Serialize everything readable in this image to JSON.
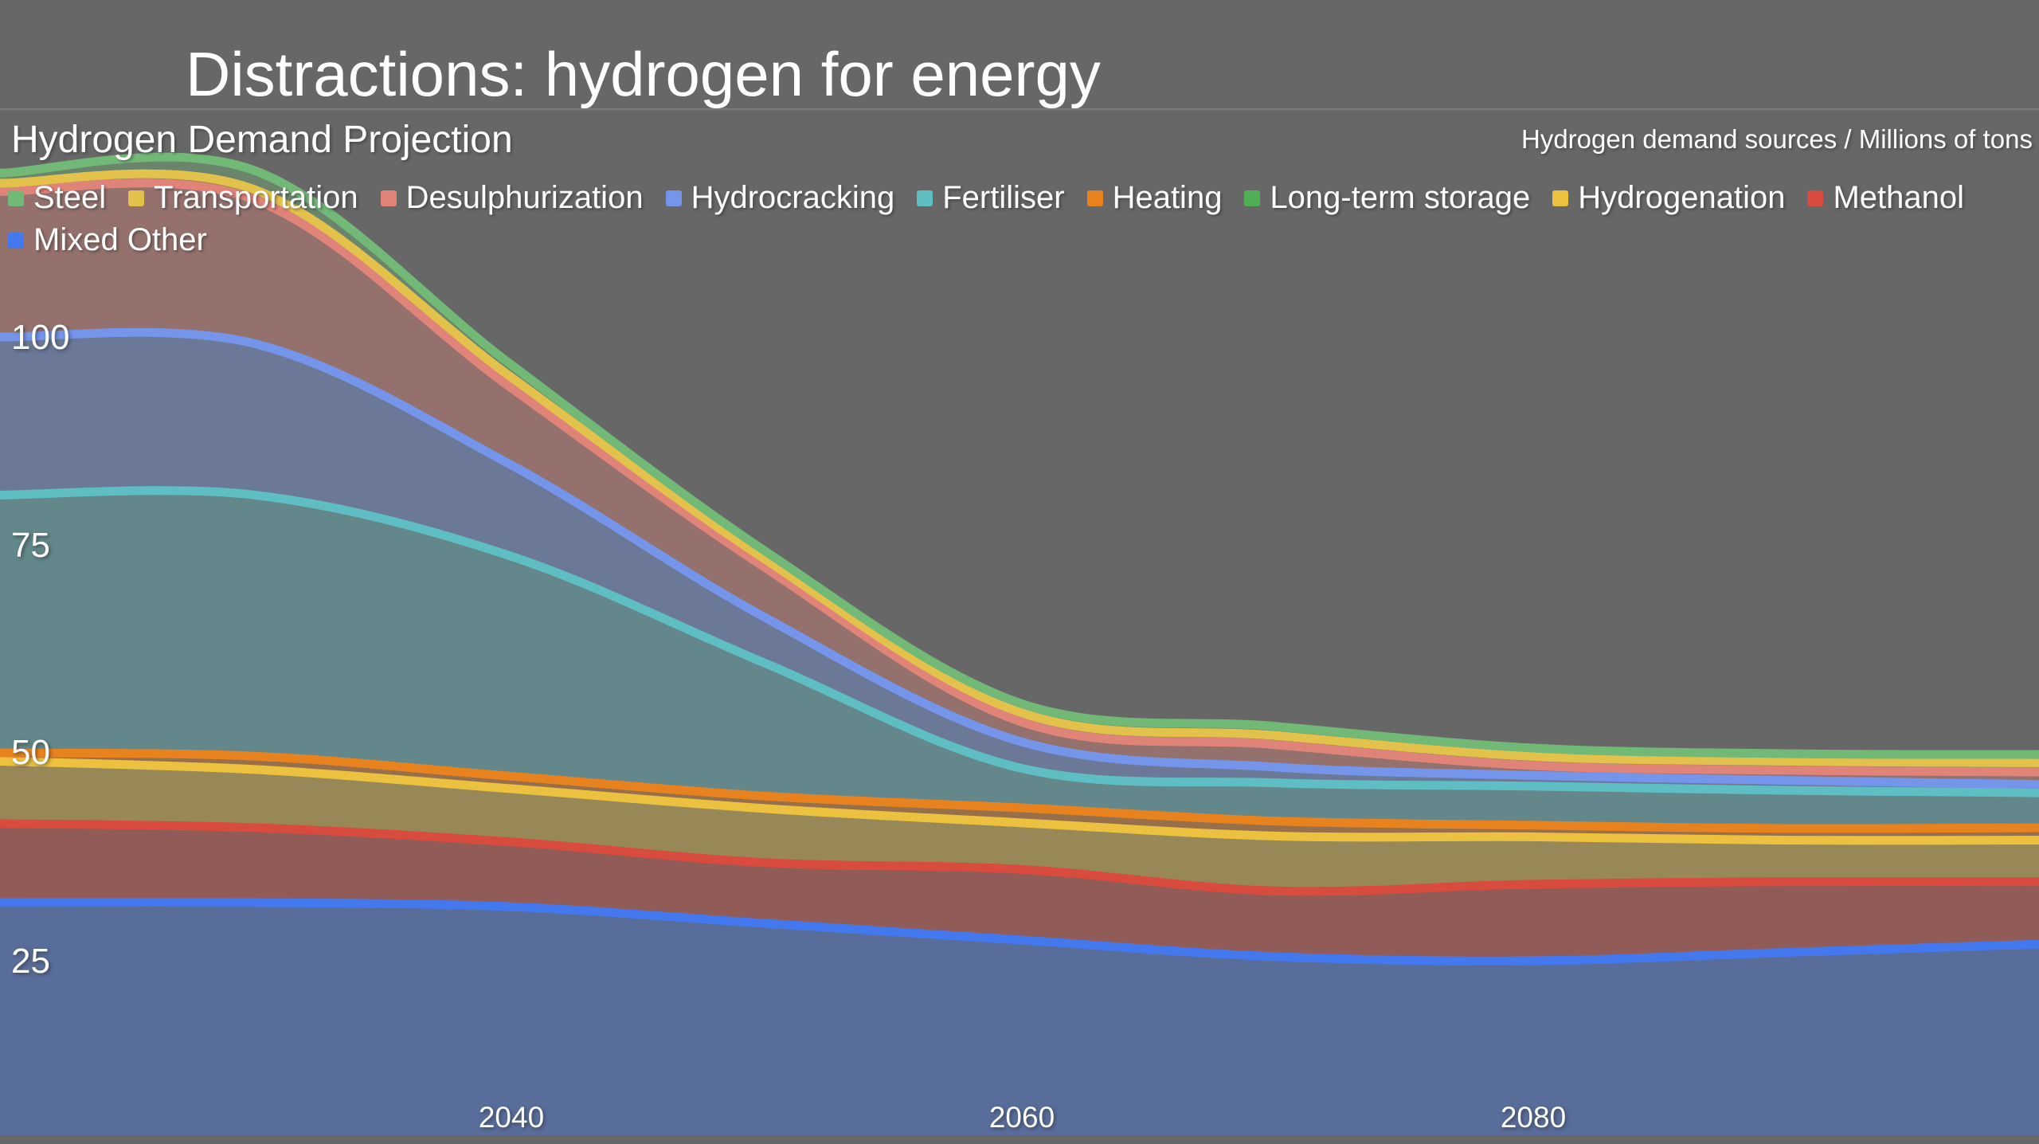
{
  "slide": {
    "title": "Distractions: hydrogen for energy"
  },
  "chart": {
    "title": "Hydrogen Demand Projection",
    "units_note": "Hydrogen demand sources / Millions of tons"
  },
  "axes": {
    "y_tick_labels": [
      "100",
      "75",
      "50",
      "25"
    ],
    "x_tick_labels": [
      "2040",
      "2060",
      "2080"
    ]
  },
  "colors": {
    "background": "#676767",
    "separator": "#7c7c7c",
    "text": "#ffffff"
  },
  "chart_data": {
    "type": "area",
    "stacked": true,
    "smoothing": "spline",
    "title": "Hydrogen Demand Projection",
    "ylabel": "Hydrogen demand sources / Millions of tons",
    "x": [
      2020,
      2030,
      2040,
      2050,
      2060,
      2070,
      2080,
      2090,
      2100
    ],
    "x_range": [
      2020,
      2100
    ],
    "y_ticks": [
      25,
      50,
      75,
      100
    ],
    "x_ticks": [
      2040,
      2060,
      2080
    ],
    "grid": false,
    "legend_position": "top-left",
    "series": [
      {
        "name": "Steel",
        "color": "#72b877",
        "values": [
          1.2,
          2.3,
          1.5,
          1.0,
          1.1,
          1.1,
          1.0,
          0.9,
          1.0
        ]
      },
      {
        "name": "Transportation",
        "color": "#e3c24c",
        "values": [
          1.0,
          1.2,
          1.3,
          1.0,
          1.1,
          1.1,
          1.1,
          1.1,
          1.1
        ]
      },
      {
        "name": "Desulphurization",
        "color": "#e08379",
        "values": [
          17.5,
          17.3,
          9.3,
          6.0,
          2.4,
          2.7,
          1.2,
          1.2,
          1.5
        ]
      },
      {
        "name": "Hydrocracking",
        "color": "#7495ea",
        "values": [
          19.0,
          18.2,
          11.0,
          5.5,
          3.2,
          1.9,
          1.3,
          1.2,
          1.0
        ]
      },
      {
        "name": "Fertiliser",
        "color": "#5fbdc4",
        "values": [
          31.0,
          31.4,
          26.5,
          16.0,
          4.8,
          4.6,
          4.7,
          4.6,
          4.2
        ]
      },
      {
        "name": "Heating",
        "color": "#e8821f",
        "values": [
          1.0,
          1.6,
          1.5,
          1.5,
          1.8,
          1.8,
          1.4,
          1.4,
          1.5
        ]
      },
      {
        "name": "Long-term storage",
        "color": "#4fae55",
        "values": [
          0,
          0,
          0,
          0,
          0,
          0,
          0,
          0,
          0
        ]
      },
      {
        "name": "Hydrogenation",
        "color": "#ecc13f",
        "values": [
          7.5,
          7.0,
          6.4,
          6.5,
          5.6,
          6.6,
          5.7,
          5.0,
          5.0
        ]
      },
      {
        "name": "Methanol",
        "color": "#d84b3e",
        "values": [
          9.5,
          9.0,
          7.8,
          7.3,
          8.5,
          7.9,
          9.2,
          8.5,
          7.5
        ]
      },
      {
        "name": "Mixed Other",
        "color": "#4478ef",
        "values": [
          32.0,
          32.0,
          31.5,
          29.5,
          27.5,
          25.5,
          25.0,
          26.0,
          27.0
        ]
      }
    ]
  }
}
